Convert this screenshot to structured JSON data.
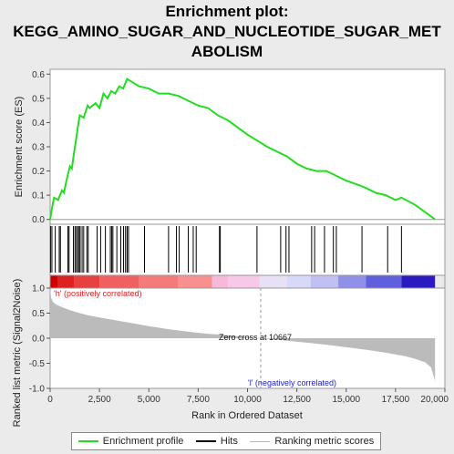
{
  "title_lines": [
    "Enrichment plot:",
    "KEGG_AMINO_SUGAR_AND_NUCLEOTIDE_SUGAR_MET",
    "ABOLISM"
  ],
  "chart_data": {
    "type": "line",
    "title": "Enrichment plot: KEGG_AMINO_SUGAR_AND_NUCLEOTIDE_SUGAR_METABOLISM",
    "n_genes": 19500,
    "enrichment": {
      "ylabel": "Enrichment score (ES)",
      "ylim": [
        -0.02,
        0.62
      ],
      "yticks": [
        "0.0",
        "0.1",
        "0.2",
        "0.3",
        "0.4",
        "0.5",
        "0.6"
      ],
      "yticks_values": [
        0.0,
        0.1,
        0.2,
        0.3,
        0.4,
        0.5,
        0.6
      ],
      "color": "#22dd22",
      "x": [
        0,
        100,
        200,
        400,
        600,
        700,
        800,
        1000,
        1100,
        1200,
        1300,
        1400,
        1500,
        1700,
        1900,
        2000,
        2300,
        2500,
        2700,
        2900,
        3100,
        3300,
        3500,
        3700,
        3900,
        4100,
        4500,
        5000,
        5500,
        6000,
        6500,
        7000,
        7500,
        8000,
        8500,
        9000,
        10000,
        11000,
        12000,
        12500,
        13000,
        13500,
        14000,
        14500,
        15000,
        15700,
        16000,
        16500,
        17000,
        17500,
        17800,
        18500,
        19000,
        19500
      ],
      "y": [
        0.0,
        0.05,
        0.09,
        0.08,
        0.12,
        0.11,
        0.15,
        0.22,
        0.21,
        0.27,
        0.32,
        0.38,
        0.43,
        0.42,
        0.47,
        0.46,
        0.48,
        0.46,
        0.52,
        0.5,
        0.53,
        0.52,
        0.55,
        0.54,
        0.58,
        0.57,
        0.55,
        0.54,
        0.52,
        0.52,
        0.51,
        0.49,
        0.47,
        0.46,
        0.43,
        0.41,
        0.35,
        0.3,
        0.26,
        0.23,
        0.21,
        0.2,
        0.2,
        0.18,
        0.16,
        0.14,
        0.13,
        0.11,
        0.1,
        0.08,
        0.09,
        0.06,
        0.03,
        0.0
      ]
    },
    "hits": [
      20,
      90,
      260,
      460,
      520,
      900,
      960,
      1180,
      1260,
      1330,
      1400,
      1470,
      1520,
      1620,
      1700,
      1860,
      1930,
      2380,
      2560,
      2800,
      3050,
      3120,
      3180,
      3380,
      3580,
      3720,
      3820,
      3900,
      3970,
      4780,
      6000,
      6400,
      6540,
      7000,
      7250,
      7400,
      8580,
      8620,
      10480,
      11680,
      11950,
      12100,
      13250,
      13400,
      13900,
      14350,
      14500,
      15800,
      17100,
      17800
    ],
    "ranked_metric": {
      "ylabel": "Ranked list metric (Signal2Noise)",
      "ylim": [
        -1.0,
        1.0
      ],
      "yticks": [
        "1.0",
        "0.5",
        "0.0",
        "-0.5",
        "-1.0"
      ],
      "yticks_values": [
        1.0,
        0.5,
        0.0,
        -0.5,
        -1.0
      ],
      "x": [
        0,
        50,
        150,
        300,
        600,
        1000,
        1500,
        2000,
        3000,
        4000,
        5000,
        6000,
        7000,
        8000,
        9000,
        10000,
        10667,
        11000,
        12000,
        13000,
        14000,
        15000,
        16000,
        17000,
        18000,
        18500,
        19000,
        19300,
        19500
      ],
      "y": [
        1.0,
        0.8,
        0.72,
        0.67,
        0.62,
        0.56,
        0.5,
        0.45,
        0.38,
        0.31,
        0.24,
        0.18,
        0.13,
        0.09,
        0.06,
        0.02,
        0.0,
        -0.01,
        -0.05,
        -0.09,
        -0.13,
        -0.18,
        -0.23,
        -0.29,
        -0.36,
        -0.41,
        -0.48,
        -0.58,
        -0.85
      ],
      "zero_cross_label": "Zero cross at 10667",
      "zero_cross": 10667,
      "pos_label": "'h' (positively correlated)",
      "neg_label": "'l' (negatively correlated)",
      "pos_color": "#dd2222",
      "neg_color": "#2222bb"
    },
    "xlabel": "Rank in Ordered Dataset",
    "xlim": [
      0,
      20000
    ],
    "xticks": [
      "0",
      "2,500",
      "5,000",
      "7,500",
      "10,000",
      "12,500",
      "15,000",
      "17,500",
      "20,000"
    ],
    "xticks_values": [
      0,
      2500,
      5000,
      7500,
      10000,
      12500,
      15000,
      17500,
      20000
    ],
    "heatbar": [
      {
        "start": 0,
        "end": 400,
        "color": "#cc0000"
      },
      {
        "start": 400,
        "end": 1200,
        "color": "#dd2020"
      },
      {
        "start": 1200,
        "end": 2500,
        "color": "#e84040"
      },
      {
        "start": 2500,
        "end": 4500,
        "color": "#f06060"
      },
      {
        "start": 4500,
        "end": 6500,
        "color": "#f57a7a"
      },
      {
        "start": 6500,
        "end": 8200,
        "color": "#f99090"
      },
      {
        "start": 8200,
        "end": 9000,
        "color": "#f8b8d8"
      },
      {
        "start": 9000,
        "end": 10600,
        "color": "#f8c8e8"
      },
      {
        "start": 10600,
        "end": 12000,
        "color": "#e8e0f4"
      },
      {
        "start": 12000,
        "end": 13200,
        "color": "#d8d8f8"
      },
      {
        "start": 13200,
        "end": 14600,
        "color": "#c0c0f4"
      },
      {
        "start": 14600,
        "end": 16000,
        "color": "#9090e8"
      },
      {
        "start": 16000,
        "end": 17800,
        "color": "#6060dc"
      },
      {
        "start": 17800,
        "end": 19500,
        "color": "#2a1ac0"
      }
    ]
  },
  "legend": {
    "items": [
      {
        "label": "Enrichment profile",
        "color": "#22dd22",
        "style": "solid"
      },
      {
        "label": "Hits",
        "color": "#000000",
        "style": "solid"
      },
      {
        "label": "Ranking metric scores",
        "color": "#bbbbbb",
        "style": "solid"
      }
    ]
  }
}
